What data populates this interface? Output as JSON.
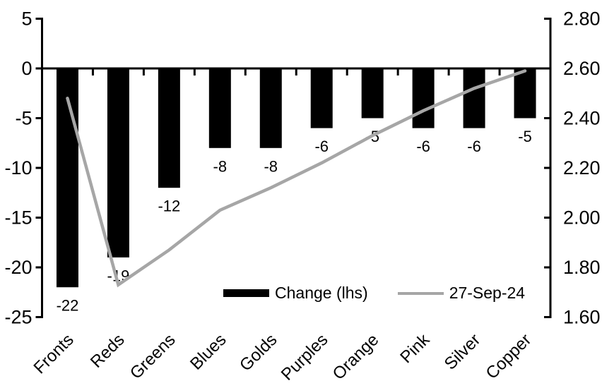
{
  "chart_data": {
    "type": "combo-bar-line",
    "title": "",
    "categories": [
      "Fronts",
      "Reds",
      "Greens",
      "Blues",
      "Golds",
      "Purples",
      "Orange",
      "Pink",
      "Silver",
      "Copper"
    ],
    "series": [
      {
        "name": "Change (lhs)",
        "type": "bar",
        "axis": "left",
        "color": "#000000",
        "values": [
          -22,
          -19,
          -12,
          -8,
          -8,
          -6,
          -5,
          -6,
          -6,
          -5
        ],
        "data_labels": [
          "-22",
          "-19",
          "-12",
          "-8",
          "-8",
          "-6",
          "-5",
          "-6",
          "-6",
          "-5"
        ]
      },
      {
        "name": "27-Sep-24",
        "type": "line",
        "axis": "right",
        "color": "#a6a6a6",
        "values": [
          2.48,
          1.73,
          1.87,
          2.03,
          2.12,
          2.22,
          2.33,
          2.43,
          2.52,
          2.59
        ]
      }
    ],
    "left_axis": {
      "min": -25,
      "max": 5,
      "step": 5,
      "tick_labels": [
        "5",
        "0",
        "-5",
        "-10",
        "-15",
        "-20",
        "-25"
      ]
    },
    "right_axis": {
      "min": 1.6,
      "max": 2.8,
      "step": 0.2,
      "tick_labels": [
        "2.80",
        "2.60",
        "2.40",
        "2.20",
        "2.00",
        "1.80",
        "1.60"
      ]
    },
    "legend": {
      "position": "bottom-inside",
      "items": [
        {
          "label": "Change (lhs)",
          "marker": "bar"
        },
        {
          "label": "27-Sep-24",
          "marker": "line"
        }
      ]
    },
    "grid": "off",
    "axis_color": "#000000",
    "text_color": "#000000",
    "background": "#ffffff"
  }
}
